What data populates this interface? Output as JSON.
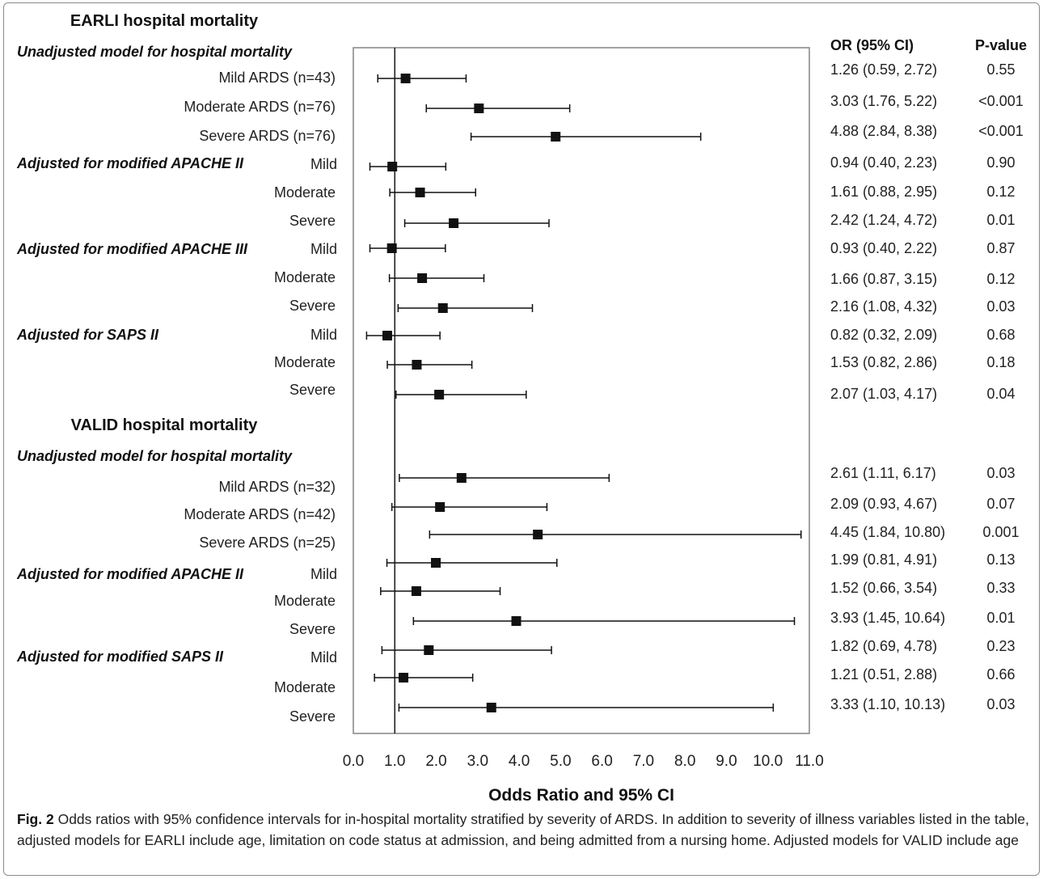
{
  "chart_data": {
    "type": "forest",
    "xlabel": "Odds Ratio and 95% CI",
    "xlim": [
      0,
      11
    ],
    "x_ticks": [
      "0.0",
      "1.0",
      "2.0",
      "3.0",
      "4.0",
      "5.0",
      "6.0",
      "7.0",
      "8.0",
      "9.0",
      "10.0",
      "11.0"
    ],
    "reference_line": 1.0,
    "column_headers": {
      "or": "OR (95% CI)",
      "p": "P-value"
    },
    "sections": [
      {
        "title": "EARLI hospital mortality",
        "groups": [
          {
            "heading": "Unadjusted model for hospital mortality",
            "rows": [
              {
                "label": "Mild ARDS (n=43)",
                "or": 1.26,
                "lo": 0.59,
                "hi": 2.72,
                "or_text": "1.26 (0.59, 2.72)",
                "p": "0.55"
              },
              {
                "label": "Moderate ARDS (n=76)",
                "or": 3.03,
                "lo": 1.76,
                "hi": 5.22,
                "or_text": "3.03 (1.76, 5.22)",
                "p": "<0.001"
              },
              {
                "label": "Severe ARDS (n=76)",
                "or": 4.88,
                "lo": 2.84,
                "hi": 8.38,
                "or_text": "4.88 (2.84, 8.38)",
                "p": "<0.001"
              }
            ]
          },
          {
            "heading": "Adjusted for modified APACHE II",
            "rows": [
              {
                "label": "Mild",
                "or": 0.94,
                "lo": 0.4,
                "hi": 2.23,
                "or_text": "0.94 (0.40, 2.23)",
                "p": "0.90"
              },
              {
                "label": "Moderate",
                "or": 1.61,
                "lo": 0.88,
                "hi": 2.95,
                "or_text": "1.61 (0.88, 2.95)",
                "p": "0.12"
              },
              {
                "label": "Severe",
                "or": 2.42,
                "lo": 1.24,
                "hi": 4.72,
                "or_text": "2.42 (1.24, 4.72)",
                "p": "0.01"
              }
            ]
          },
          {
            "heading": "Adjusted for modified APACHE III",
            "rows": [
              {
                "label": "Mild",
                "or": 0.93,
                "lo": 0.4,
                "hi": 2.22,
                "or_text": "0.93 (0.40, 2.22)",
                "p": "0.87"
              },
              {
                "label": "Moderate",
                "or": 1.66,
                "lo": 0.87,
                "hi": 3.15,
                "or_text": "1.66 (0.87, 3.15)",
                "p": "0.12"
              },
              {
                "label": "Severe",
                "or": 2.16,
                "lo": 1.08,
                "hi": 4.32,
                "or_text": "2.16 (1.08, 4.32)",
                "p": "0.03"
              }
            ]
          },
          {
            "heading": "Adjusted for SAPS II",
            "rows": [
              {
                "label": "Mild",
                "or": 0.82,
                "lo": 0.32,
                "hi": 2.09,
                "or_text": "0.82 (0.32, 2.09)",
                "p": "0.68"
              },
              {
                "label": "Moderate",
                "or": 1.53,
                "lo": 0.82,
                "hi": 2.86,
                "or_text": "1.53 (0.82, 2.86)",
                "p": "0.18"
              },
              {
                "label": "Severe",
                "or": 2.07,
                "lo": 1.03,
                "hi": 4.17,
                "or_text": "2.07 (1.03, 4.17)",
                "p": "0.04"
              }
            ]
          }
        ]
      },
      {
        "title": "VALID hospital mortality",
        "groups": [
          {
            "heading": "Unadjusted model for hospital mortality",
            "rows": [
              {
                "label": "Mild ARDS (n=32)",
                "or": 2.61,
                "lo": 1.11,
                "hi": 6.17,
                "or_text": "2.61 (1.11, 6.17)",
                "p": "0.03"
              },
              {
                "label": "Moderate ARDS (n=42)",
                "or": 2.09,
                "lo": 0.93,
                "hi": 4.67,
                "or_text": "2.09 (0.93, 4.67)",
                "p": "0.07"
              },
              {
                "label": "Severe ARDS (n=25)",
                "or": 4.45,
                "lo": 1.84,
                "hi": 10.8,
                "or_text": "4.45 (1.84, 10.80)",
                "p": "0.001"
              }
            ]
          },
          {
            "heading": "Adjusted for modified APACHE II",
            "rows": [
              {
                "label": "Mild",
                "or": 1.99,
                "lo": 0.81,
                "hi": 4.91,
                "or_text": "1.99 (0.81, 4.91)",
                "p": "0.13"
              },
              {
                "label": "Moderate",
                "or": 1.52,
                "lo": 0.66,
                "hi": 3.54,
                "or_text": "1.52 (0.66, 3.54)",
                "p": "0.33"
              },
              {
                "label": "Severe",
                "or": 3.93,
                "lo": 1.45,
                "hi": 10.64,
                "or_text": "3.93 (1.45, 10.64)",
                "p": "0.01"
              }
            ]
          },
          {
            "heading": "Adjusted for modified SAPS II",
            "rows": [
              {
                "label": "Mild",
                "or": 1.82,
                "lo": 0.69,
                "hi": 4.78,
                "or_text": "1.82 (0.69, 4.78)",
                "p": "0.23"
              },
              {
                "label": "Moderate",
                "or": 1.21,
                "lo": 0.51,
                "hi": 2.88,
                "or_text": "1.21 (0.51, 2.88)",
                "p": "0.66"
              },
              {
                "label": "Severe",
                "or": 3.33,
                "lo": 1.1,
                "hi": 10.13,
                "or_text": "3.33 (1.10, 10.13)",
                "p": "0.03"
              }
            ]
          }
        ]
      }
    ]
  },
  "caption": {
    "label": "Fig. 2",
    "text": "Odds ratios with 95% confidence intervals for in-hospital mortality stratified by severity of ARDS. In addition to severity of illness variables listed in the table, adjusted models for EARLI include age, limitation on code status at admission, and being admitted from a nursing home. Adjusted models for VALID include age"
  }
}
